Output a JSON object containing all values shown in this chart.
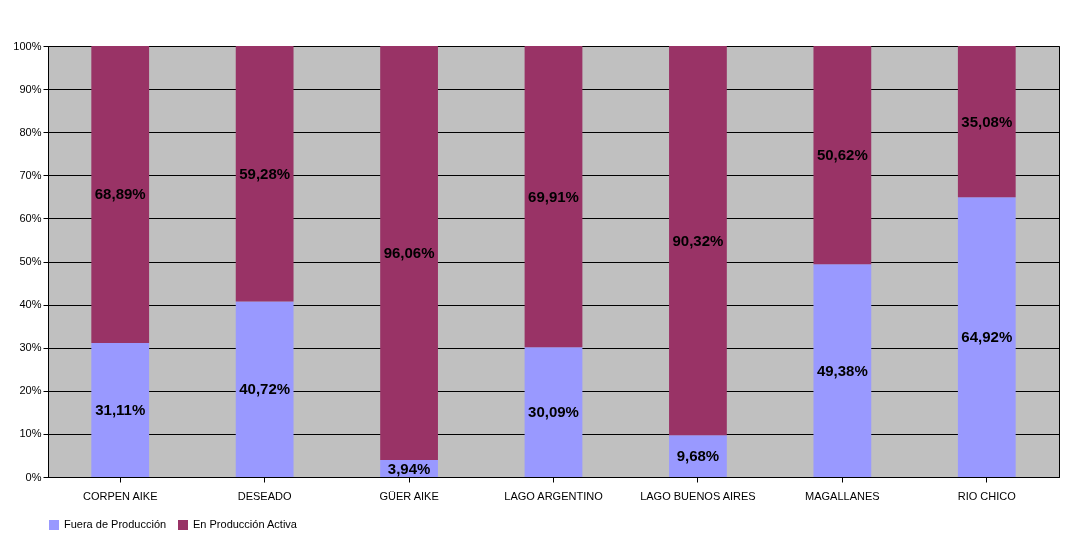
{
  "chart_data": {
    "type": "bar",
    "stacked": true,
    "categories": [
      "CORPEN AIKE",
      "DESEADO",
      "GÜER AIKE",
      "LAGO ARGENTINO",
      "LAGO BUENOS AIRES",
      "MAGALLANES",
      "RIO CHICO"
    ],
    "series": [
      {
        "name": "Fuera de Producción",
        "color": "#9999ff",
        "values": [
          31.11,
          40.72,
          3.94,
          30.09,
          9.68,
          49.38,
          64.92
        ],
        "value_labels": [
          "31,11%",
          "40,72%",
          "3,94%",
          "30,09%",
          "9,68%",
          "49,38%",
          "64,92%"
        ]
      },
      {
        "name": "En Producción Activa",
        "color": "#993366",
        "values": [
          68.89,
          59.28,
          96.06,
          69.91,
          90.32,
          50.62,
          35.08
        ],
        "value_labels": [
          "68,89%",
          "59,28%",
          "96,06%",
          "69,91%",
          "90,32%",
          "50,62%",
          "35,08%"
        ]
      }
    ],
    "ylim": [
      0,
      100
    ],
    "yticks": [
      {
        "value": 0,
        "label": "0%"
      },
      {
        "value": 10,
        "label": "10%"
      },
      {
        "value": 20,
        "label": "20%"
      },
      {
        "value": 30,
        "label": "30%"
      },
      {
        "value": 40,
        "label": "40%"
      },
      {
        "value": 50,
        "label": "50%"
      },
      {
        "value": 60,
        "label": "60%"
      },
      {
        "value": 70,
        "label": "70%"
      },
      {
        "value": 80,
        "label": "80%"
      },
      {
        "value": 90,
        "label": "90%"
      },
      {
        "value": 100,
        "label": "100%"
      }
    ],
    "grid": "y",
    "legend": "bottom"
  }
}
